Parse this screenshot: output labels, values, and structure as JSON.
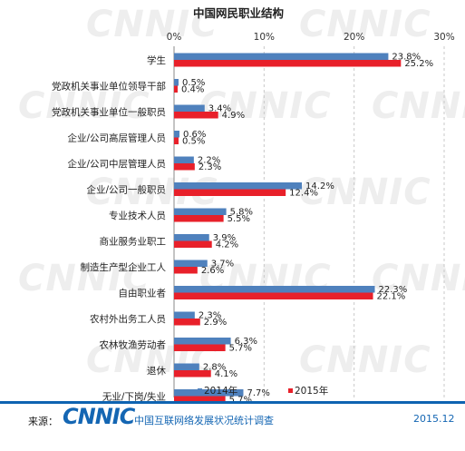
{
  "chart_data": {
    "type": "bar",
    "orientation": "horizontal",
    "title": "中国网民职业结构",
    "categories": [
      "学生",
      "党政机关事业单位领导干部",
      "党政机关事业单位一般职员",
      "企业/公司高层管理人员",
      "企业/公司中层管理人员",
      "企业/公司一般职员",
      "专业技术人员",
      "商业服务业职工",
      "制造生产型企业工人",
      "自由职业者",
      "农村外出务工人员",
      "农林牧渔劳动者",
      "退休",
      "无业/下岗/失业"
    ],
    "series": [
      {
        "name": "2014年",
        "color": "#4f81bd",
        "values": [
          23.8,
          0.5,
          3.4,
          0.6,
          2.2,
          14.2,
          5.8,
          3.9,
          3.7,
          22.3,
          2.3,
          6.3,
          2.8,
          7.7
        ]
      },
      {
        "name": "2015年",
        "color": "#e8202a",
        "values": [
          25.2,
          0.4,
          4.9,
          0.5,
          2.3,
          12.4,
          5.5,
          4.2,
          2.6,
          22.1,
          2.9,
          5.7,
          4.1,
          5.7
        ]
      }
    ],
    "xlim": [
      0,
      30
    ],
    "xticks": [
      "0%",
      "10%",
      "20%",
      "30%"
    ],
    "value_suffix": "%",
    "grid": "vertical dashed",
    "legend_position": "bottom"
  },
  "watermark": "CNNIC",
  "footer": {
    "source_label": "来源：",
    "logo": "CNNIC",
    "org": "中国互联网络发展状况统计调查",
    "date": "2015.12"
  }
}
